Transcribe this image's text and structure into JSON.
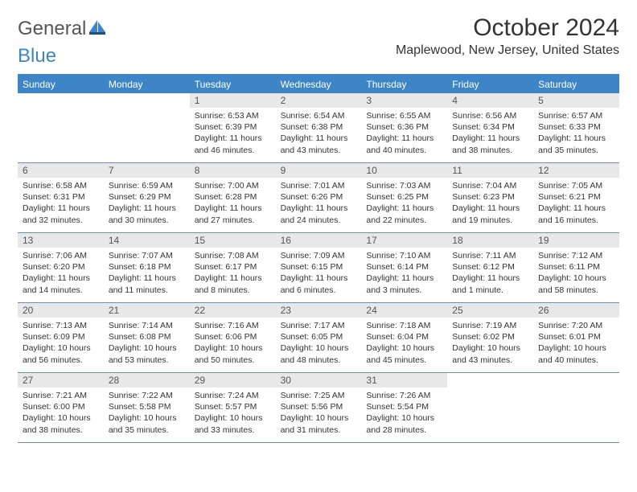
{
  "brand": {
    "part1": "General",
    "part2": "Blue"
  },
  "title": "October 2024",
  "location": "Maplewood, New Jersey, United States",
  "header_bg": "#3d85c6",
  "daynum_bg": "#e8e8e8",
  "border_color": "#6a8fb5",
  "weekdays": [
    "Sunday",
    "Monday",
    "Tuesday",
    "Wednesday",
    "Thursday",
    "Friday",
    "Saturday"
  ],
  "weeks": [
    [
      null,
      null,
      {
        "n": "1",
        "sunrise": "6:53 AM",
        "sunset": "6:39 PM",
        "dl_h": 11,
        "dl_m": 46
      },
      {
        "n": "2",
        "sunrise": "6:54 AM",
        "sunset": "6:38 PM",
        "dl_h": 11,
        "dl_m": 43
      },
      {
        "n": "3",
        "sunrise": "6:55 AM",
        "sunset": "6:36 PM",
        "dl_h": 11,
        "dl_m": 40
      },
      {
        "n": "4",
        "sunrise": "6:56 AM",
        "sunset": "6:34 PM",
        "dl_h": 11,
        "dl_m": 38
      },
      {
        "n": "5",
        "sunrise": "6:57 AM",
        "sunset": "6:33 PM",
        "dl_h": 11,
        "dl_m": 35
      }
    ],
    [
      {
        "n": "6",
        "sunrise": "6:58 AM",
        "sunset": "6:31 PM",
        "dl_h": 11,
        "dl_m": 32
      },
      {
        "n": "7",
        "sunrise": "6:59 AM",
        "sunset": "6:29 PM",
        "dl_h": 11,
        "dl_m": 30
      },
      {
        "n": "8",
        "sunrise": "7:00 AM",
        "sunset": "6:28 PM",
        "dl_h": 11,
        "dl_m": 27
      },
      {
        "n": "9",
        "sunrise": "7:01 AM",
        "sunset": "6:26 PM",
        "dl_h": 11,
        "dl_m": 24
      },
      {
        "n": "10",
        "sunrise": "7:03 AM",
        "sunset": "6:25 PM",
        "dl_h": 11,
        "dl_m": 22
      },
      {
        "n": "11",
        "sunrise": "7:04 AM",
        "sunset": "6:23 PM",
        "dl_h": 11,
        "dl_m": 19
      },
      {
        "n": "12",
        "sunrise": "7:05 AM",
        "sunset": "6:21 PM",
        "dl_h": 11,
        "dl_m": 16
      }
    ],
    [
      {
        "n": "13",
        "sunrise": "7:06 AM",
        "sunset": "6:20 PM",
        "dl_h": 11,
        "dl_m": 14
      },
      {
        "n": "14",
        "sunrise": "7:07 AM",
        "sunset": "6:18 PM",
        "dl_h": 11,
        "dl_m": 11
      },
      {
        "n": "15",
        "sunrise": "7:08 AM",
        "sunset": "6:17 PM",
        "dl_h": 11,
        "dl_m": 8
      },
      {
        "n": "16",
        "sunrise": "7:09 AM",
        "sunset": "6:15 PM",
        "dl_h": 11,
        "dl_m": 6
      },
      {
        "n": "17",
        "sunrise": "7:10 AM",
        "sunset": "6:14 PM",
        "dl_h": 11,
        "dl_m": 3
      },
      {
        "n": "18",
        "sunrise": "7:11 AM",
        "sunset": "6:12 PM",
        "dl_h": 11,
        "dl_m": 1
      },
      {
        "n": "19",
        "sunrise": "7:12 AM",
        "sunset": "6:11 PM",
        "dl_h": 10,
        "dl_m": 58
      }
    ],
    [
      {
        "n": "20",
        "sunrise": "7:13 AM",
        "sunset": "6:09 PM",
        "dl_h": 10,
        "dl_m": 56
      },
      {
        "n": "21",
        "sunrise": "7:14 AM",
        "sunset": "6:08 PM",
        "dl_h": 10,
        "dl_m": 53
      },
      {
        "n": "22",
        "sunrise": "7:16 AM",
        "sunset": "6:06 PM",
        "dl_h": 10,
        "dl_m": 50
      },
      {
        "n": "23",
        "sunrise": "7:17 AM",
        "sunset": "6:05 PM",
        "dl_h": 10,
        "dl_m": 48
      },
      {
        "n": "24",
        "sunrise": "7:18 AM",
        "sunset": "6:04 PM",
        "dl_h": 10,
        "dl_m": 45
      },
      {
        "n": "25",
        "sunrise": "7:19 AM",
        "sunset": "6:02 PM",
        "dl_h": 10,
        "dl_m": 43
      },
      {
        "n": "26",
        "sunrise": "7:20 AM",
        "sunset": "6:01 PM",
        "dl_h": 10,
        "dl_m": 40
      }
    ],
    [
      {
        "n": "27",
        "sunrise": "7:21 AM",
        "sunset": "6:00 PM",
        "dl_h": 10,
        "dl_m": 38
      },
      {
        "n": "28",
        "sunrise": "7:22 AM",
        "sunset": "5:58 PM",
        "dl_h": 10,
        "dl_m": 35
      },
      {
        "n": "29",
        "sunrise": "7:24 AM",
        "sunset": "5:57 PM",
        "dl_h": 10,
        "dl_m": 33
      },
      {
        "n": "30",
        "sunrise": "7:25 AM",
        "sunset": "5:56 PM",
        "dl_h": 10,
        "dl_m": 31
      },
      {
        "n": "31",
        "sunrise": "7:26 AM",
        "sunset": "5:54 PM",
        "dl_h": 10,
        "dl_m": 28
      },
      null,
      null
    ]
  ],
  "labels": {
    "sunrise": "Sunrise:",
    "sunset": "Sunset:",
    "daylight": "Daylight:",
    "hours": "hours",
    "and": "and",
    "minutes_word_plural": "minutes.",
    "minutes_word_singular": "minute."
  }
}
